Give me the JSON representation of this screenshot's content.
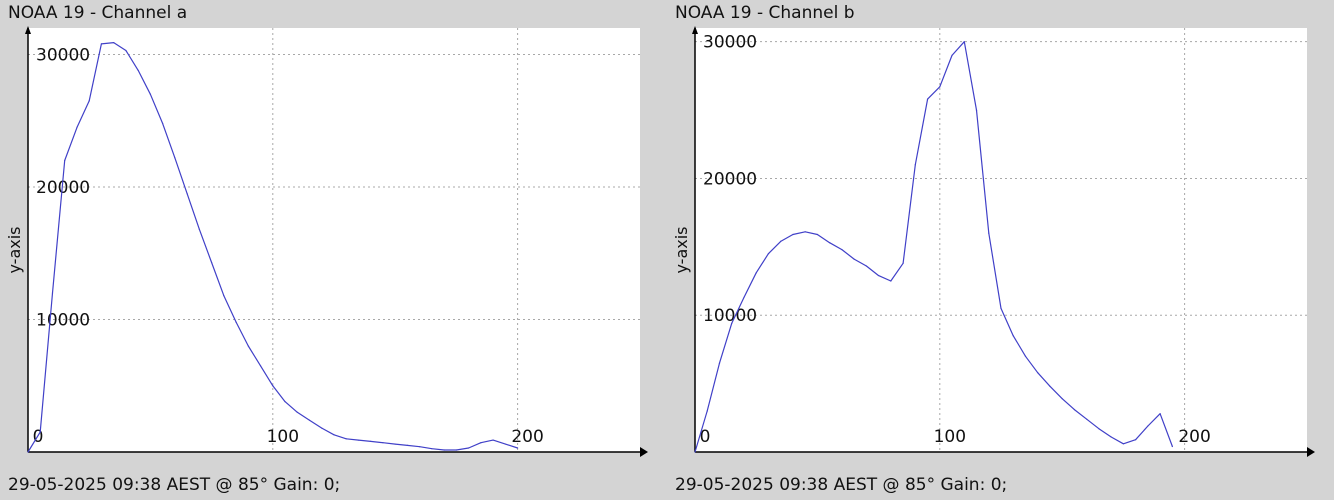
{
  "charts": [
    {
      "title": "NOAA 19 - Channel a",
      "footer": "29-05-2025 09:38 AEST @ 85° Gain: 0;",
      "ylabel": "y-axis"
    },
    {
      "title": "NOAA 19 - Channel b",
      "footer": "29-05-2025 09:38 AEST @ 85° Gain: 0;",
      "ylabel": "y-axis"
    }
  ],
  "colors": {
    "line": "#4040c8",
    "grid": "#a8a8a8",
    "axis": "#000000",
    "plot_bg": "#ffffff",
    "page_bg": "#d4d4d4"
  },
  "chart_data": [
    {
      "type": "line",
      "title": "NOAA 19 - Channel a",
      "xlabel": "",
      "ylabel": "y-axis",
      "xlim": [
        0,
        250
      ],
      "ylim": [
        0,
        32000
      ],
      "xticks": [
        "0",
        "100",
        "200"
      ],
      "yticks": [
        "10000",
        "20000",
        "30000"
      ],
      "grid": true,
      "x": [
        0,
        5,
        10,
        15,
        20,
        25,
        30,
        35,
        40,
        45,
        50,
        55,
        60,
        65,
        70,
        75,
        80,
        85,
        90,
        95,
        100,
        105,
        110,
        115,
        120,
        125,
        130,
        135,
        140,
        145,
        150,
        155,
        160,
        165,
        170,
        175,
        180,
        185,
        190,
        195,
        200
      ],
      "y": [
        0,
        1500,
        12000,
        22000,
        24500,
        26500,
        30800,
        30900,
        30300,
        28800,
        27000,
        24800,
        22200,
        19500,
        16800,
        14300,
        11800,
        9800,
        8000,
        6500,
        5000,
        3800,
        3000,
        2400,
        1800,
        1300,
        1000,
        900,
        800,
        700,
        600,
        500,
        400,
        250,
        150,
        150,
        300,
        700,
        900,
        600,
        300
      ]
    },
    {
      "type": "line",
      "title": "NOAA 19 - Channel b",
      "xlabel": "",
      "ylabel": "y-axis",
      "xlim": [
        0,
        250
      ],
      "ylim": [
        0,
        31000
      ],
      "xticks": [
        "0",
        "100",
        "200"
      ],
      "yticks": [
        "10000",
        "20000",
        "30000"
      ],
      "grid": true,
      "x": [
        0,
        5,
        10,
        15,
        20,
        25,
        30,
        35,
        40,
        45,
        50,
        55,
        60,
        65,
        70,
        75,
        80,
        85,
        90,
        95,
        100,
        105,
        110,
        115,
        120,
        125,
        130,
        135,
        140,
        145,
        150,
        155,
        160,
        165,
        170,
        175,
        180,
        185,
        190,
        195
      ],
      "y": [
        0,
        3000,
        6500,
        9400,
        11300,
        13100,
        14500,
        15400,
        15900,
        16100,
        15900,
        15300,
        14800,
        14100,
        13600,
        12900,
        12500,
        13800,
        21000,
        25800,
        26700,
        29000,
        30000,
        25000,
        16000,
        10500,
        8500,
        7000,
        5800,
        4800,
        3900,
        3100,
        2400,
        1700,
        1100,
        600,
        900,
        1900,
        2800,
        400
      ]
    }
  ]
}
